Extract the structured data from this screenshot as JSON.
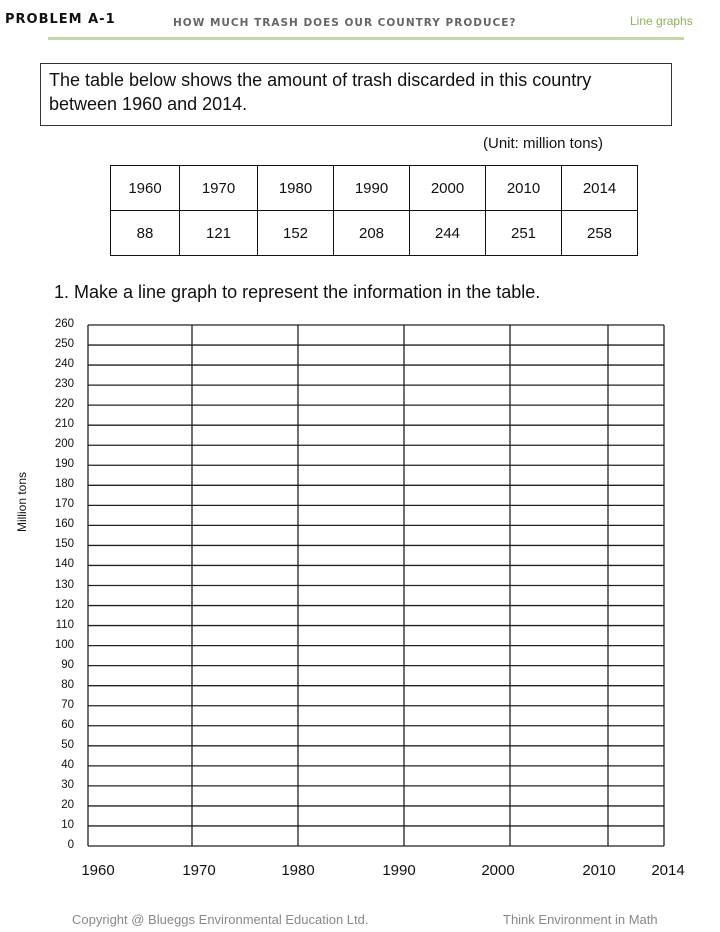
{
  "header": {
    "problem": "PROBLEM A-1",
    "title": "HOW MUCH TRASH DOES OUR COUNTRY PRODUCE?",
    "topic": "Line graphs",
    "accent": "#c5d8a3",
    "topic_color": "#8fb15a"
  },
  "intro": "The table below shows the amount of trash discarded in this country between 1960 and 2014.",
  "unit": "(Unit: million tons)",
  "table": {
    "years": [
      "1960",
      "1970",
      "1980",
      "1990",
      "2000",
      "2010",
      "2014"
    ],
    "values": [
      "88",
      "121",
      "152",
      "208",
      "244",
      "251",
      "258"
    ]
  },
  "question": "1. Make a line graph to represent the information in the table.",
  "graph": {
    "ylabel": "Million tons",
    "yticks": [
      "0",
      "10",
      "20",
      "30",
      "40",
      "50",
      "60",
      "70",
      "80",
      "90",
      "100",
      "110",
      "120",
      "130",
      "140",
      "150",
      "160",
      "170",
      "180",
      "190",
      "200",
      "210",
      "220",
      "230",
      "240",
      "250",
      "260"
    ],
    "xticks": [
      "1960",
      "1970",
      "1980",
      "1990",
      "2000",
      "2010",
      "2014"
    ]
  },
  "footer": {
    "copyright": "Copyright @ Blueggs Environmental Education Ltd.",
    "tagline": "Think Environment in Math"
  }
}
